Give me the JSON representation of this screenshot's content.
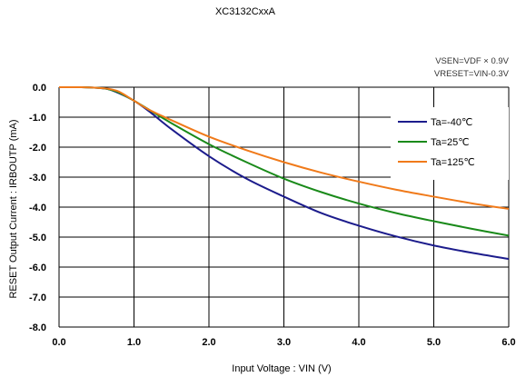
{
  "chart_data": {
    "type": "line",
    "title": "XC3132CxxA",
    "conditions": [
      "VSEN=VDF × 0.9V",
      "VRESET=VIN-0.3V"
    ],
    "xlabel": "Input Voltage : VIN (V)",
    "ylabel": "RESET Output Current : IRBOUTP (mA)",
    "xlim": [
      0,
      6
    ],
    "ylim": [
      -8,
      0
    ],
    "xticks": [
      "0.0",
      "1.0",
      "2.0",
      "3.0",
      "4.0",
      "5.0",
      "6.0"
    ],
    "yticks": [
      "0.0",
      "-1.0",
      "-2.0",
      "-3.0",
      "-4.0",
      "-5.0",
      "-6.0",
      "-7.0",
      "-8.0"
    ],
    "grid": true,
    "legend_position": "upper-right",
    "series": [
      {
        "name": "Ta=-40℃",
        "color": "#1c1c8c",
        "x": [
          0.0,
          0.3,
          0.5,
          0.65,
          0.8,
          1.0,
          1.2,
          1.5,
          2.0,
          2.5,
          3.0,
          3.5,
          4.0,
          4.5,
          5.0,
          5.5,
          6.0
        ],
        "y": [
          0.0,
          0.0,
          -0.02,
          -0.06,
          -0.2,
          -0.45,
          -0.8,
          -1.4,
          -2.3,
          -3.05,
          -3.65,
          -4.2,
          -4.62,
          -4.98,
          -5.28,
          -5.52,
          -5.73
        ]
      },
      {
        "name": "Ta=25℃",
        "color": "#1a8a1a",
        "x": [
          0.0,
          0.3,
          0.5,
          0.65,
          0.8,
          1.0,
          1.2,
          1.5,
          2.0,
          2.5,
          3.0,
          3.5,
          4.0,
          4.5,
          5.0,
          5.5,
          6.0
        ],
        "y": [
          0.0,
          0.0,
          -0.02,
          -0.06,
          -0.18,
          -0.45,
          -0.75,
          -1.2,
          -1.9,
          -2.5,
          -3.05,
          -3.5,
          -3.88,
          -4.2,
          -4.47,
          -4.72,
          -4.95
        ]
      },
      {
        "name": "Ta=125℃",
        "color": "#f07a1a",
        "x": [
          0.0,
          0.3,
          0.5,
          0.65,
          0.8,
          1.0,
          1.2,
          1.5,
          2.0,
          2.5,
          3.0,
          3.5,
          4.0,
          4.5,
          5.0,
          5.5,
          6.0
        ],
        "y": [
          0.0,
          0.0,
          -0.02,
          -0.05,
          -0.15,
          -0.45,
          -0.75,
          -1.1,
          -1.65,
          -2.1,
          -2.5,
          -2.85,
          -3.15,
          -3.42,
          -3.65,
          -3.87,
          -4.06
        ]
      }
    ]
  }
}
